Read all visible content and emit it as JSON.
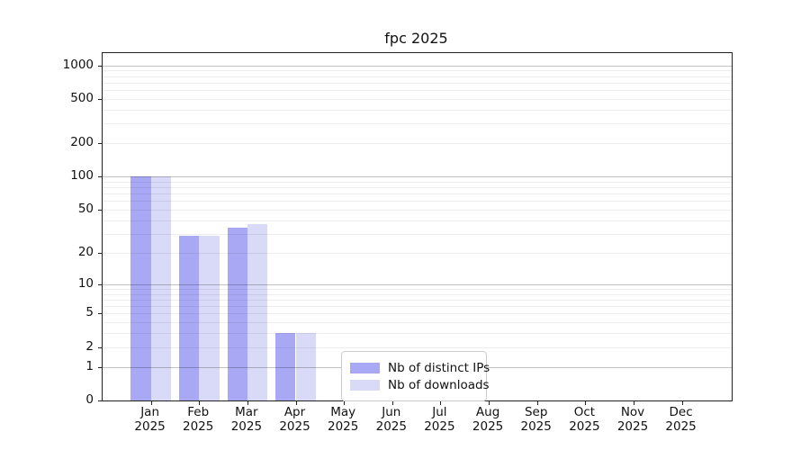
{
  "title": "fpc 2025",
  "chart_data": {
    "type": "bar",
    "title": "fpc 2025",
    "x_tick_months": [
      "Jan",
      "Feb",
      "Mar",
      "Apr",
      "May",
      "Jun",
      "Jul",
      "Aug",
      "Sep",
      "Oct",
      "Nov",
      "Dec"
    ],
    "x_tick_year": "2025",
    "y_scale": "log10(1+x)",
    "y_tick_labels": [
      0,
      1,
      2,
      5,
      10,
      20,
      50,
      100,
      200,
      500,
      1000
    ],
    "y_major_gridlines": [
      1,
      10,
      100,
      1000
    ],
    "y_minor_gridlines": [
      2,
      3,
      4,
      5,
      6,
      7,
      8,
      9,
      20,
      30,
      40,
      50,
      60,
      70,
      80,
      90,
      200,
      300,
      400,
      500,
      600,
      700,
      800,
      900
    ],
    "ylim": [
      0,
      1290
    ],
    "grid": true,
    "legend_position": "lower center",
    "categories": [
      "Jan 2025",
      "Feb 2025",
      "Mar 2025",
      "Apr 2025",
      "May 2025",
      "Jun 2025",
      "Jul 2025",
      "Aug 2025",
      "Sep 2025",
      "Oct 2025",
      "Nov 2025",
      "Dec 2025"
    ],
    "series": [
      {
        "name": "Nb of distinct IPs",
        "color": "#a8a8f4",
        "values": [
          100,
          29,
          34,
          3,
          0,
          0,
          0,
          0,
          0,
          0,
          0,
          0
        ]
      },
      {
        "name": "Nb of downloads",
        "color": "#d9d9f8",
        "values": [
          100,
          29,
          37,
          3,
          0,
          0,
          0,
          0,
          0,
          0,
          0,
          0
        ]
      }
    ]
  }
}
